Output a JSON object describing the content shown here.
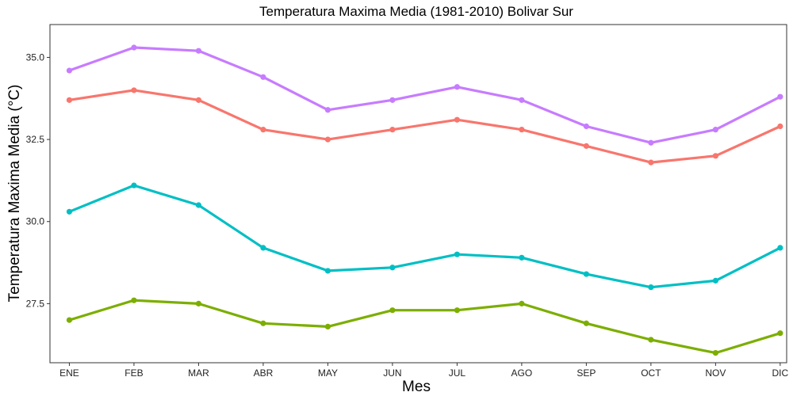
{
  "chart_data": {
    "type": "line",
    "title": "Temperatura Maxima Media (1981-2010)  Bolivar Sur",
    "xlabel": "Mes",
    "ylabel": "Temperatura Maxima Media  (°C)",
    "categories": [
      "ENE",
      "FEB",
      "MAR",
      "ABR",
      "MAY",
      "JUN",
      "JUL",
      "AGO",
      "SEP",
      "OCT",
      "NOV",
      "DIC"
    ],
    "ylim": [
      25.7,
      36.0
    ],
    "yticks": [
      27.5,
      30.0,
      32.5,
      35.0
    ],
    "ytick_labels": [
      "27.5",
      "30.0",
      "32.5",
      "35.0"
    ],
    "grid": false,
    "legend": "none",
    "series": [
      {
        "color": "#C77CFF",
        "values": [
          34.6,
          35.3,
          35.2,
          34.4,
          33.4,
          33.7,
          34.1,
          33.7,
          32.9,
          32.4,
          32.8,
          33.8
        ]
      },
      {
        "color": "#F8766D",
        "values": [
          33.7,
          34.0,
          33.7,
          32.8,
          32.5,
          32.8,
          33.1,
          32.8,
          32.3,
          31.8,
          32.0,
          32.9
        ]
      },
      {
        "color": "#00BFC4",
        "values": [
          30.3,
          31.1,
          30.5,
          29.2,
          28.5,
          28.6,
          29.0,
          28.9,
          28.4,
          28.0,
          28.2,
          29.2
        ]
      },
      {
        "color": "#7CAE00",
        "values": [
          27.0,
          27.6,
          27.5,
          26.9,
          26.8,
          27.3,
          27.3,
          27.5,
          26.9,
          26.4,
          26.0,
          26.6
        ]
      }
    ]
  }
}
